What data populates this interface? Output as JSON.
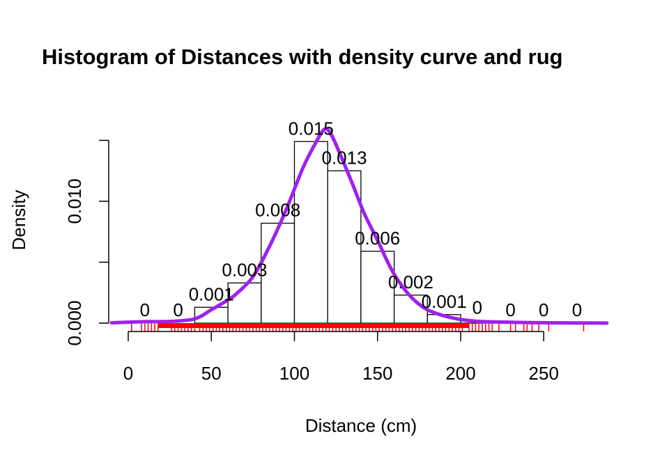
{
  "chart_data": {
    "type": "bar",
    "title": "Histogram of Distances with density curve and rug",
    "xlabel": "Distance (cm)",
    "ylabel": "Density",
    "xlim": [
      -10,
      288
    ],
    "ylim": [
      0,
      0.015
    ],
    "x_ticks": [
      0,
      50,
      100,
      150,
      200,
      250
    ],
    "y_ticks": [
      0.0,
      0.005,
      0.01,
      0.015
    ],
    "y_tick_labels": [
      "0.000",
      "",
      "0.010",
      ""
    ],
    "bins": [
      {
        "x0": 0,
        "x1": 20,
        "density": 0.0,
        "label": "0"
      },
      {
        "x0": 20,
        "x1": 40,
        "density": 0.0,
        "label": "0"
      },
      {
        "x0": 40,
        "x1": 60,
        "density": 0.0013,
        "label": "0.001"
      },
      {
        "x0": 60,
        "x1": 80,
        "density": 0.0033,
        "label": "0.003"
      },
      {
        "x0": 80,
        "x1": 100,
        "density": 0.0082,
        "label": "0.008"
      },
      {
        "x0": 100,
        "x1": 120,
        "density": 0.0149,
        "label": "0.015"
      },
      {
        "x0": 120,
        "x1": 140,
        "density": 0.0125,
        "label": "0.013"
      },
      {
        "x0": 140,
        "x1": 160,
        "density": 0.0059,
        "label": "0.006"
      },
      {
        "x0": 160,
        "x1": 180,
        "density": 0.0023,
        "label": "0.002"
      },
      {
        "x0": 180,
        "x1": 200,
        "density": 0.0007,
        "label": "0.001"
      },
      {
        "x0": 200,
        "x1": 220,
        "density": 0.0002,
        "label": "0"
      },
      {
        "x0": 220,
        "x1": 240,
        "density": 0.0,
        "label": "0"
      },
      {
        "x0": 240,
        "x1": 260,
        "density": 0.0,
        "label": "0"
      },
      {
        "x0": 260,
        "x1": 280,
        "density": 0.0,
        "label": "0"
      }
    ],
    "density_curve": {
      "color": "#A020F0",
      "x": [
        -10,
        10,
        25,
        40,
        50,
        60,
        65,
        75,
        85,
        95,
        105,
        112,
        118,
        122,
        128,
        135,
        142,
        150,
        158,
        165,
        172,
        180,
        190,
        200,
        210,
        220,
        240,
        260,
        288
      ],
      "y": [
        3e-05,
        0.00012,
        0.00014,
        0.00035,
        0.0011,
        0.0019,
        0.0024,
        0.0038,
        0.0063,
        0.0093,
        0.0127,
        0.0146,
        0.0159,
        0.0155,
        0.0137,
        0.0114,
        0.009,
        0.0068,
        0.0045,
        0.003,
        0.0019,
        0.0011,
        0.0006,
        0.0003,
        0.00015,
        0.0001,
        5e-05,
        2e-05,
        1e-05
      ]
    },
    "rug": {
      "color": "#FF0000",
      "values": [
        2,
        8,
        10,
        12,
        14,
        16,
        18,
        26,
        28,
        30,
        32,
        34,
        36,
        38,
        40,
        43,
        45,
        47,
        49,
        51,
        53,
        55,
        57,
        59,
        61,
        63,
        65,
        67,
        69,
        71,
        73,
        75,
        77,
        79,
        81,
        83,
        85,
        87,
        89,
        91,
        93,
        95,
        97,
        99,
        101,
        103,
        105,
        107,
        109,
        111,
        113,
        115,
        117,
        119,
        121,
        123,
        125,
        127,
        129,
        131,
        133,
        135,
        137,
        139,
        141,
        143,
        145,
        147,
        149,
        151,
        153,
        155,
        157,
        159,
        161,
        163,
        165,
        167,
        169,
        171,
        173,
        175,
        177,
        179,
        181,
        183,
        185,
        187,
        189,
        191,
        193,
        195,
        197,
        199,
        201,
        205,
        207,
        209,
        211,
        213,
        215,
        217,
        219,
        223,
        230,
        233,
        238,
        240,
        243,
        247,
        253,
        274
      ]
    },
    "bar_fill": "#FFFFFF",
    "bar_stroke": "#000000"
  }
}
